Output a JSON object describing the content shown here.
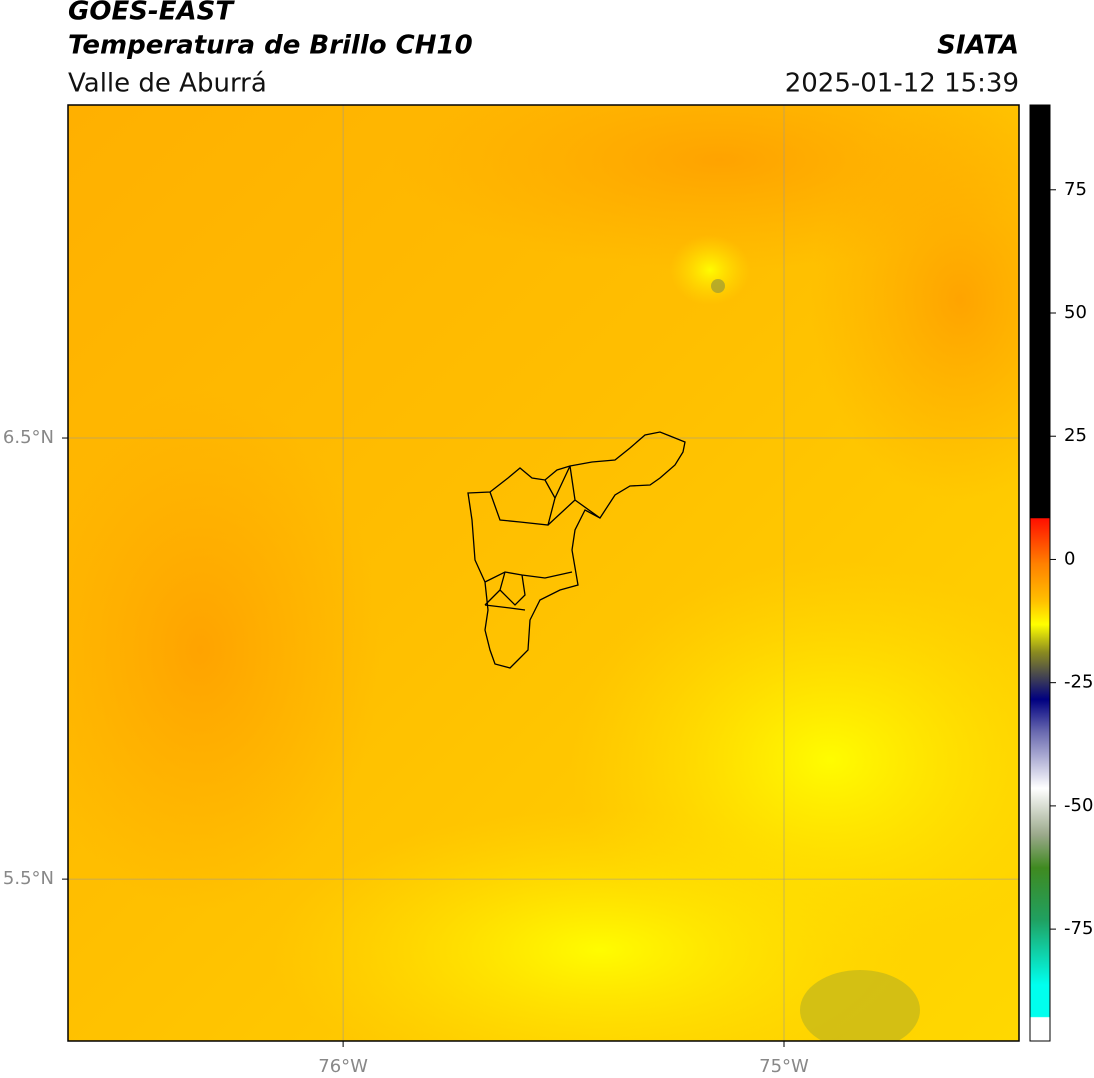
{
  "header": {
    "title": "GOES-EAST",
    "subtitle": "Temperatura de Brillo CH10",
    "region": "Valle de Aburrá",
    "source": "SIATA",
    "timestamp": "2025-01-12 15:39"
  },
  "map": {
    "xlim": [
      -76.624,
      -74.467
    ],
    "ylim": [
      5.133,
      7.255
    ],
    "xticks": [
      {
        "value": -76,
        "label": "76°W"
      },
      {
        "value": -75,
        "label": "75°W"
      }
    ],
    "yticks": [
      {
        "value": 6.5,
        "label": "6.5°N"
      },
      {
        "value": 5.5,
        "label": "5.5°N"
      }
    ],
    "grid": true
  },
  "colorbar": {
    "lim": [
      -97.7,
      92.2
    ],
    "ticks": [
      75,
      50,
      25,
      0,
      -25,
      -50,
      -75
    ]
  }
}
